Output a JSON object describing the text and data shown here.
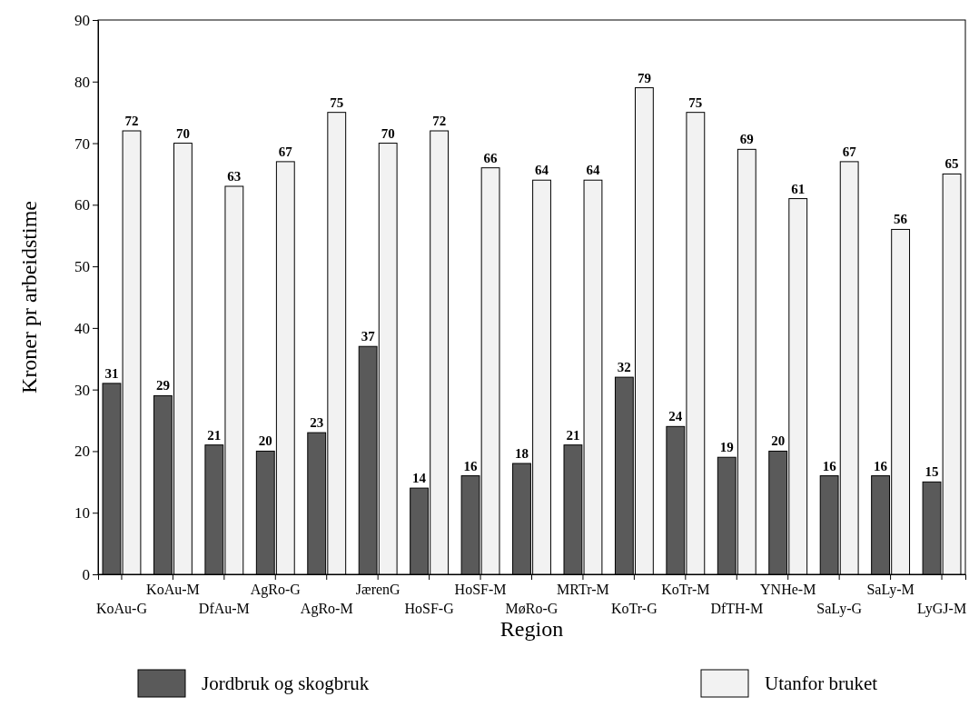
{
  "chart_data": {
    "type": "bar",
    "xlabel": "Region",
    "ylabel": "Kroner pr arbeidstime",
    "categories": [
      "KoAu-G",
      "KoAu-M",
      "DfAu-M",
      "AgRo-G",
      "AgRo-M",
      "JærenG",
      "HoSF-G",
      "HoSF-M",
      "MøRo-G",
      "MRTr-M",
      "KoTr-G",
      "KoTr-M",
      "DfTH-M",
      "YNHe-M",
      "SaLy-G",
      "SaLy-M",
      "LyGJ-M"
    ],
    "series": [
      {
        "name": "Jordbruk og skogbruk",
        "color": "#5a5a5a",
        "values": [
          31,
          29,
          21,
          20,
          23,
          37,
          14,
          16,
          18,
          21,
          32,
          24,
          19,
          20,
          16,
          16,
          15
        ]
      },
      {
        "name": "Utanfor bruket",
        "color": "#f2f2f2",
        "values": [
          72,
          70,
          63,
          67,
          75,
          70,
          72,
          66,
          64,
          64,
          79,
          75,
          69,
          61,
          67,
          56,
          65
        ]
      }
    ],
    "ylim": [
      0,
      90
    ],
    "yticks": [
      0,
      10,
      20,
      30,
      40,
      50,
      60,
      70,
      80,
      90
    ],
    "data_labels": true,
    "legend": "bottom",
    "grid": false
  }
}
